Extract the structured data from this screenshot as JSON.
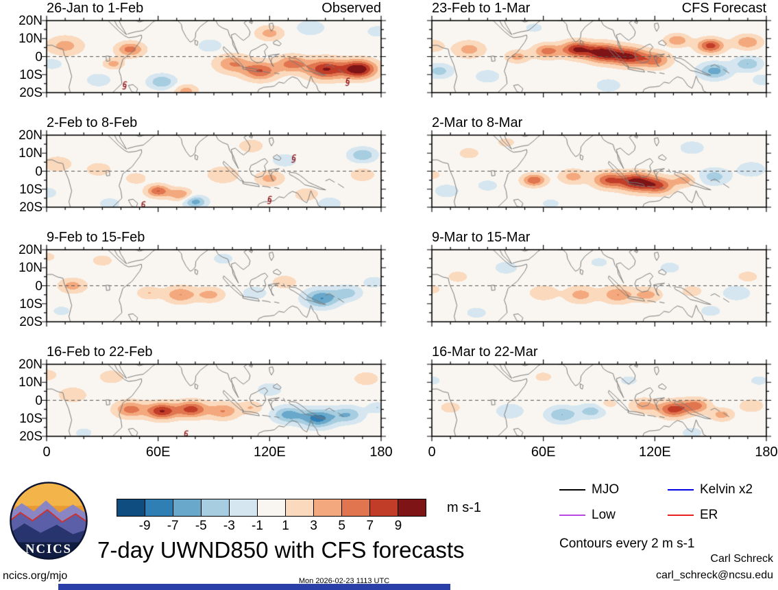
{
  "chart_data": {
    "type": "heatmap",
    "title": "7-day UWND850 with CFS forecasts",
    "contours_note": "Contours every 2 m s-1",
    "x_axis": {
      "ticks": [
        "0",
        "60E",
        "120E",
        "180"
      ],
      "tick_values": [
        0,
        60,
        120,
        180
      ],
      "range": [
        0,
        180
      ]
    },
    "y_axis": {
      "ticks": [
        "20N",
        "10N",
        "0",
        "10S",
        "20S"
      ],
      "tick_values": [
        20,
        10,
        0,
        -10,
        -20
      ],
      "range": [
        -20,
        20
      ]
    },
    "colorbar": {
      "label": "m s-1",
      "levels": [
        -9,
        -7,
        -5,
        -3,
        -1,
        1,
        3,
        5,
        7,
        9
      ],
      "colors": [
        "#0f4d80",
        "#2f7eb4",
        "#69a8ca",
        "#a6cde0",
        "#d6e6f0",
        "#f9f6f1",
        "#fad9bd",
        "#f3a97d",
        "#e0754f",
        "#c23d28",
        "#7f1416"
      ]
    },
    "legend": {
      "entries": [
        {
          "label": "MJO",
          "color": "#000000"
        },
        {
          "label": "Kelvin x2",
          "color": "#0000e0"
        },
        {
          "label": "Low",
          "color": "#b846e0"
        },
        {
          "label": "ER",
          "color": "#e82020"
        }
      ]
    },
    "panels": [
      {
        "title": "26-Jan to 1-Feb",
        "corner_label": "Observed",
        "blobs": [
          [
            10,
            6,
            4,
            9
          ],
          [
            45,
            4,
            6,
            7
          ],
          [
            36,
            -4,
            4,
            5
          ],
          [
            100,
            -4,
            5,
            9
          ],
          [
            115,
            -8,
            7,
            9
          ],
          [
            132,
            -4,
            6,
            8
          ],
          [
            150,
            -7,
            9,
            10
          ],
          [
            168,
            -7,
            11,
            9
          ],
          [
            120,
            13,
            4,
            7
          ],
          [
            75,
            -19,
            4,
            6
          ],
          [
            62,
            -14,
            -5,
            7
          ],
          [
            28,
            -13,
            -3,
            6
          ],
          [
            88,
            6,
            -3,
            6
          ],
          [
            142,
            16,
            -3,
            7
          ],
          [
            3,
            -4,
            -3,
            5
          ],
          [
            178,
            14,
            -3,
            5
          ]
        ],
        "cyclones": [
          [
            42,
            -16
          ],
          [
            162,
            -14
          ]
        ]
      },
      {
        "title": "2-Feb to 8-Feb",
        "corner_label": "",
        "blobs": [
          [
            6,
            4,
            3,
            7
          ],
          [
            28,
            1,
            3,
            6
          ],
          [
            60,
            -11,
            7,
            6
          ],
          [
            72,
            -13,
            5,
            6
          ],
          [
            95,
            -2,
            3,
            8
          ],
          [
            120,
            -4,
            4,
            7
          ],
          [
            140,
            -13,
            3,
            6
          ],
          [
            110,
            14,
            3,
            6
          ],
          [
            170,
            -2,
            3,
            6
          ],
          [
            48,
            -4,
            3,
            5
          ],
          [
            80,
            -17,
            -6,
            6
          ],
          [
            34,
            -18,
            -3,
            5
          ],
          [
            128,
            6,
            -3,
            6
          ],
          [
            170,
            9,
            -5,
            7
          ],
          [
            152,
            -18,
            -3,
            6
          ],
          [
            0,
            -12,
            -3,
            5
          ]
        ],
        "cyclones": [
          [
            52,
            -19
          ],
          [
            120,
            -16
          ],
          [
            133,
            7
          ]
        ]
      },
      {
        "title": "9-Feb to 15-Feb",
        "corner_label": "",
        "blobs": [
          [
            14,
            0,
            4,
            7
          ],
          [
            55,
            -4,
            3,
            6
          ],
          [
            72,
            -5,
            5,
            8
          ],
          [
            88,
            -5,
            4,
            7
          ],
          [
            30,
            14,
            2,
            6
          ],
          [
            128,
            2,
            3,
            6
          ],
          [
            0,
            16,
            2,
            5
          ],
          [
            112,
            -4,
            -3,
            6
          ],
          [
            148,
            -7,
            -7,
            9
          ],
          [
            162,
            -4,
            -4,
            7
          ],
          [
            95,
            15,
            -2,
            6
          ],
          [
            8,
            -14,
            -2,
            5
          ],
          [
            176,
            2,
            -3,
            5
          ]
        ],
        "cyclones": []
      },
      {
        "title": "16-Feb to 22-Feb",
        "corner_label": "",
        "blobs": [
          [
            14,
            3,
            3,
            7
          ],
          [
            45,
            -5,
            6,
            8
          ],
          [
            62,
            -6,
            9,
            8
          ],
          [
            78,
            -5,
            8,
            8
          ],
          [
            95,
            -6,
            5,
            8
          ],
          [
            110,
            -4,
            3,
            6
          ],
          [
            35,
            13,
            3,
            6
          ],
          [
            0,
            14,
            3,
            5
          ],
          [
            172,
            12,
            3,
            6
          ],
          [
            130,
            -8,
            -6,
            8
          ],
          [
            146,
            -10,
            -8,
            9
          ],
          [
            162,
            -8,
            -5,
            8
          ],
          [
            120,
            6,
            -3,
            6
          ],
          [
            178,
            -4,
            -3,
            5
          ],
          [
            20,
            -18,
            -2,
            5
          ]
        ],
        "cyclones": [
          [
            75,
            -19
          ]
        ]
      },
      {
        "title": "23-Feb to 1-Mar",
        "corner_label": "CFS Forecast",
        "blobs": [
          [
            20,
            4,
            4,
            8
          ],
          [
            46,
            0,
            4,
            6
          ],
          [
            62,
            3,
            6,
            7
          ],
          [
            78,
            4,
            9,
            8
          ],
          [
            92,
            2,
            10,
            9
          ],
          [
            106,
            0,
            9,
            9
          ],
          [
            120,
            -2,
            6,
            8
          ],
          [
            150,
            6,
            8,
            7
          ],
          [
            170,
            8,
            5,
            7
          ],
          [
            132,
            9,
            5,
            6
          ],
          [
            0,
            6,
            3,
            6
          ],
          [
            4,
            -8,
            -4,
            7
          ],
          [
            30,
            -11,
            -3,
            6
          ],
          [
            95,
            -16,
            -3,
            6
          ],
          [
            152,
            -8,
            -6,
            8
          ],
          [
            170,
            -4,
            -5,
            7
          ],
          [
            55,
            16,
            -2,
            5
          ],
          [
            178,
            -13,
            -3,
            5
          ]
        ],
        "cyclones": []
      },
      {
        "title": "2-Mar to 8-Mar",
        "corner_label": "",
        "blobs": [
          [
            55,
            -5,
            7,
            6
          ],
          [
            76,
            -3,
            4,
            7
          ],
          [
            95,
            -5,
            7,
            8
          ],
          [
            110,
            -6,
            10,
            9
          ],
          [
            122,
            -8,
            7,
            8
          ],
          [
            136,
            -5,
            4,
            6
          ],
          [
            20,
            10,
            2,
            6
          ],
          [
            40,
            16,
            2,
            5
          ],
          [
            0,
            -2,
            2,
            5
          ],
          [
            152,
            -3,
            -4,
            8
          ],
          [
            172,
            1,
            -3,
            7
          ],
          [
            8,
            -11,
            -3,
            6
          ],
          [
            140,
            13,
            -3,
            6
          ],
          [
            64,
            -18,
            -2,
            5
          ],
          [
            30,
            -8,
            -2,
            6
          ]
        ],
        "cyclones": []
      },
      {
        "title": "9-Mar to 15-Mar",
        "corner_label": "",
        "blobs": [
          [
            14,
            5,
            2,
            6
          ],
          [
            60,
            -4,
            3,
            7
          ],
          [
            80,
            -5,
            4,
            8
          ],
          [
            100,
            -5,
            5,
            8
          ],
          [
            116,
            -5,
            4,
            7
          ],
          [
            140,
            -3,
            2,
            6
          ],
          [
            0,
            -2,
            2,
            5
          ],
          [
            170,
            5,
            2,
            6
          ],
          [
            40,
            10,
            -2,
            7
          ],
          [
            128,
            10,
            -2,
            6
          ],
          [
            164,
            -4,
            -3,
            7
          ],
          [
            24,
            -15,
            -2,
            6
          ],
          [
            90,
            13,
            -2,
            5
          ],
          [
            150,
            -14,
            -2,
            6
          ]
        ],
        "cyclones": []
      },
      {
        "title": "16-Mar to 22-Mar",
        "corner_label": "",
        "blobs": [
          [
            114,
            -3,
            4,
            7
          ],
          [
            130,
            -5,
            8,
            8
          ],
          [
            142,
            -3,
            6,
            7
          ],
          [
            156,
            -8,
            4,
            6
          ],
          [
            172,
            -3,
            3,
            6
          ],
          [
            10,
            -4,
            2,
            6
          ],
          [
            60,
            13,
            2,
            5
          ],
          [
            95,
            -2,
            2,
            5
          ],
          [
            70,
            -8,
            -5,
            8
          ],
          [
            86,
            -6,
            -4,
            7
          ],
          [
            42,
            -6,
            -3,
            7
          ],
          [
            0,
            11,
            -2,
            5
          ],
          [
            106,
            11,
            -2,
            5
          ],
          [
            176,
            11,
            -2,
            5
          ],
          [
            140,
            -18,
            -2,
            6
          ]
        ],
        "cyclones": []
      }
    ]
  },
  "footer": {
    "site": "ncics.org/mjo",
    "timestamp": "Mon 2026-02-23 1113 UTC",
    "author": "Carl Schreck",
    "email": "carl_schreck@ncsu.edu",
    "logo_text": "NCICS"
  }
}
